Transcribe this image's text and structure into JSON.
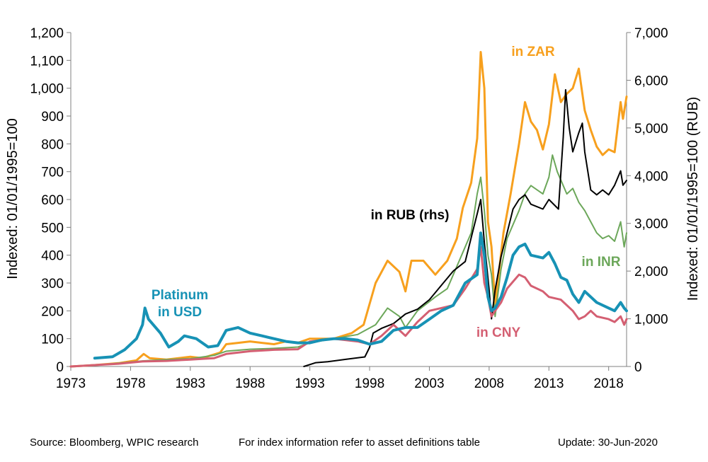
{
  "chart_data": {
    "type": "line",
    "left_axis": {
      "label": "Indexed: 01/01/1995=100",
      "range": [
        0,
        1200
      ],
      "ticks": [
        "0",
        "100",
        "200",
        "300",
        "400",
        "500",
        "600",
        "700",
        "800",
        "900",
        "1,000",
        "1,100",
        "1,200"
      ]
    },
    "right_axis": {
      "label": "Indexed: 01/01/1995=100  (RUB)",
      "range": [
        0,
        7000
      ],
      "ticks": [
        "0",
        "1,000",
        "2,000",
        "3,000",
        "4,000",
        "5,000",
        "6,000",
        "7,000"
      ]
    },
    "x_axis": {
      "range": [
        1973,
        2019.5
      ],
      "ticks": [
        "1973",
        "1978",
        "1983",
        "1988",
        "1993",
        "1998",
        "2003",
        "2008",
        "2013",
        "2018"
      ]
    },
    "grid": false,
    "series": [
      {
        "name": "in ZAR",
        "axis": "left",
        "color": "#F7A01E",
        "width": 3,
        "points": [
          [
            1973,
            0
          ],
          [
            1975,
            5
          ],
          [
            1977,
            12
          ],
          [
            1978.5,
            22
          ],
          [
            1979.1,
            45
          ],
          [
            1979.6,
            30
          ],
          [
            1981,
            25
          ],
          [
            1983,
            35
          ],
          [
            1984,
            30
          ],
          [
            1985.5,
            50
          ],
          [
            1986,
            80
          ],
          [
            1987,
            85
          ],
          [
            1988,
            90
          ],
          [
            1989,
            85
          ],
          [
            1990,
            80
          ],
          [
            1991,
            90
          ],
          [
            1992,
            85
          ],
          [
            1993,
            100
          ],
          [
            1995,
            100
          ],
          [
            1996.5,
            120
          ],
          [
            1997.5,
            150
          ],
          [
            1998.5,
            300
          ],
          [
            1999.5,
            380
          ],
          [
            2000.5,
            340
          ],
          [
            2001,
            270
          ],
          [
            2001.5,
            380
          ],
          [
            2002.5,
            380
          ],
          [
            2003.5,
            330
          ],
          [
            2004.5,
            380
          ],
          [
            2005.3,
            460
          ],
          [
            2005.8,
            570
          ],
          [
            2006.5,
            660
          ],
          [
            2007,
            820
          ],
          [
            2007.3,
            1130
          ],
          [
            2007.6,
            1000
          ],
          [
            2007.9,
            520
          ],
          [
            2008.2,
            430
          ],
          [
            2008.5,
            220
          ],
          [
            2009.2,
            480
          ],
          [
            2009.8,
            620
          ],
          [
            2010.5,
            800
          ],
          [
            2011,
            950
          ],
          [
            2011.5,
            880
          ],
          [
            2012,
            850
          ],
          [
            2012.5,
            780
          ],
          [
            2013,
            870
          ],
          [
            2013.5,
            1050
          ],
          [
            2014,
            950
          ],
          [
            2014.5,
            980
          ],
          [
            2015,
            1000
          ],
          [
            2015.5,
            1070
          ],
          [
            2016,
            920
          ],
          [
            2016.5,
            850
          ],
          [
            2017,
            790
          ],
          [
            2017.5,
            760
          ],
          [
            2018,
            780
          ],
          [
            2018.5,
            770
          ],
          [
            2019,
            950
          ],
          [
            2019.2,
            890
          ],
          [
            2019.5,
            970
          ]
        ]
      },
      {
        "name": "in INR",
        "axis": "left",
        "color": "#6CA75A",
        "width": 2,
        "points": [
          [
            1973,
            0
          ],
          [
            1975,
            5
          ],
          [
            1977,
            12
          ],
          [
            1979,
            20
          ],
          [
            1981,
            25
          ],
          [
            1983,
            28
          ],
          [
            1985,
            40
          ],
          [
            1986,
            55
          ],
          [
            1988,
            62
          ],
          [
            1990,
            65
          ],
          [
            1992,
            70
          ],
          [
            1993,
            85
          ],
          [
            1995,
            100
          ],
          [
            1997,
            115
          ],
          [
            1998.5,
            150
          ],
          [
            1999.5,
            210
          ],
          [
            2000.5,
            180
          ],
          [
            2001,
            140
          ],
          [
            2002,
            200
          ],
          [
            2003.5,
            250
          ],
          [
            2004.5,
            280
          ],
          [
            2005.5,
            380
          ],
          [
            2006.5,
            480
          ],
          [
            2007,
            620
          ],
          [
            2007.3,
            680
          ],
          [
            2007.6,
            560
          ],
          [
            2007.9,
            400
          ],
          [
            2008.2,
            330
          ],
          [
            2008.5,
            180
          ],
          [
            2009,
            350
          ],
          [
            2009.5,
            460
          ],
          [
            2010.5,
            560
          ],
          [
            2011,
            620
          ],
          [
            2011.5,
            650
          ],
          [
            2012.5,
            620
          ],
          [
            2013,
            680
          ],
          [
            2013.3,
            760
          ],
          [
            2013.7,
            700
          ],
          [
            2014.5,
            620
          ],
          [
            2015,
            640
          ],
          [
            2015.5,
            590
          ],
          [
            2016,
            560
          ],
          [
            2016.5,
            520
          ],
          [
            2017,
            480
          ],
          [
            2017.5,
            460
          ],
          [
            2018,
            470
          ],
          [
            2018.5,
            450
          ],
          [
            2019,
            520
          ],
          [
            2019.3,
            430
          ],
          [
            2019.5,
            480
          ]
        ]
      },
      {
        "name": "in RUB (rhs)",
        "axis": "right",
        "color": "#000000",
        "width": 2,
        "points": [
          [
            1992.5,
            0
          ],
          [
            1993.5,
            80
          ],
          [
            1994.5,
            100
          ],
          [
            1996,
            150
          ],
          [
            1997.6,
            200
          ],
          [
            1998,
            400
          ],
          [
            1998.3,
            700
          ],
          [
            1999,
            800
          ],
          [
            2000,
            900
          ],
          [
            2001,
            1100
          ],
          [
            2002,
            1200
          ],
          [
            2003,
            1400
          ],
          [
            2004,
            1700
          ],
          [
            2005,
            2000
          ],
          [
            2006,
            2200
          ],
          [
            2006.6,
            2800
          ],
          [
            2007,
            3200
          ],
          [
            2007.3,
            3500
          ],
          [
            2007.6,
            2600
          ],
          [
            2008,
            1600
          ],
          [
            2008.2,
            1000
          ],
          [
            2008.5,
            1600
          ],
          [
            2009,
            2300
          ],
          [
            2009.5,
            2800
          ],
          [
            2010,
            3300
          ],
          [
            2010.5,
            3500
          ],
          [
            2011,
            3600
          ],
          [
            2011.5,
            3400
          ],
          [
            2012.5,
            3300
          ],
          [
            2013,
            3500
          ],
          [
            2013.8,
            3300
          ],
          [
            2014.2,
            4800
          ],
          [
            2014.4,
            5800
          ],
          [
            2014.7,
            5000
          ],
          [
            2015,
            4500
          ],
          [
            2015.5,
            4900
          ],
          [
            2015.8,
            5100
          ],
          [
            2016,
            4500
          ],
          [
            2016.5,
            3700
          ],
          [
            2017,
            3600
          ],
          [
            2017.5,
            3700
          ],
          [
            2018,
            3600
          ],
          [
            2018.5,
            3800
          ],
          [
            2019,
            4100
          ],
          [
            2019.2,
            3800
          ],
          [
            2019.5,
            3900
          ]
        ]
      },
      {
        "name": "in CNY",
        "axis": "left",
        "color": "#D45F72",
        "width": 3,
        "points": [
          [
            1973,
            0
          ],
          [
            1975,
            5
          ],
          [
            1977,
            10
          ],
          [
            1979,
            18
          ],
          [
            1981,
            20
          ],
          [
            1983,
            25
          ],
          [
            1985,
            30
          ],
          [
            1986,
            45
          ],
          [
            1988,
            55
          ],
          [
            1990,
            60
          ],
          [
            1992,
            62
          ],
          [
            1993,
            90
          ],
          [
            1995,
            100
          ],
          [
            1997,
            90
          ],
          [
            1998,
            80
          ],
          [
            1999,
            110
          ],
          [
            2000,
            150
          ],
          [
            2001,
            110
          ],
          [
            2002,
            160
          ],
          [
            2003,
            200
          ],
          [
            2004,
            210
          ],
          [
            2005,
            220
          ],
          [
            2006,
            280
          ],
          [
            2007,
            350
          ],
          [
            2007.3,
            430
          ],
          [
            2007.6,
            300
          ],
          [
            2007.9,
            250
          ],
          [
            2008.2,
            180
          ],
          [
            2008.5,
            200
          ],
          [
            2009,
            230
          ],
          [
            2009.5,
            280
          ],
          [
            2010.5,
            330
          ],
          [
            2011,
            320
          ],
          [
            2011.5,
            290
          ],
          [
            2012.5,
            270
          ],
          [
            2013,
            250
          ],
          [
            2014,
            240
          ],
          [
            2015,
            200
          ],
          [
            2015.5,
            170
          ],
          [
            2016,
            180
          ],
          [
            2016.5,
            200
          ],
          [
            2017,
            180
          ],
          [
            2018,
            170
          ],
          [
            2018.5,
            160
          ],
          [
            2019,
            180
          ],
          [
            2019.3,
            150
          ],
          [
            2019.5,
            170
          ]
        ]
      },
      {
        "name": "Platinum in USD",
        "axis": "left",
        "color": "#1792B5",
        "width": 4,
        "points": [
          [
            1975,
            30
          ],
          [
            1976.5,
            35
          ],
          [
            1977.5,
            60
          ],
          [
            1978.5,
            100
          ],
          [
            1979,
            150
          ],
          [
            1979.2,
            210
          ],
          [
            1979.5,
            170
          ],
          [
            1980.5,
            120
          ],
          [
            1981.2,
            70
          ],
          [
            1982,
            90
          ],
          [
            1982.5,
            110
          ],
          [
            1983.5,
            100
          ],
          [
            1984.5,
            70
          ],
          [
            1985.3,
            75
          ],
          [
            1986,
            130
          ],
          [
            1987,
            140
          ],
          [
            1988,
            120
          ],
          [
            1989,
            110
          ],
          [
            1990,
            100
          ],
          [
            1991,
            90
          ],
          [
            1992,
            85
          ],
          [
            1993,
            85
          ],
          [
            1994,
            95
          ],
          [
            1995,
            100
          ],
          [
            1996,
            100
          ],
          [
            1997,
            95
          ],
          [
            1998,
            80
          ],
          [
            1999,
            90
          ],
          [
            2000,
            130
          ],
          [
            2001,
            140
          ],
          [
            2002,
            140
          ],
          [
            2003,
            170
          ],
          [
            2004,
            200
          ],
          [
            2005,
            220
          ],
          [
            2006,
            300
          ],
          [
            2007,
            330
          ],
          [
            2007.3,
            480
          ],
          [
            2007.6,
            400
          ],
          [
            2007.9,
            250
          ],
          [
            2008.2,
            200
          ],
          [
            2008.5,
            210
          ],
          [
            2009,
            250
          ],
          [
            2009.5,
            320
          ],
          [
            2010,
            400
          ],
          [
            2010.5,
            430
          ],
          [
            2011,
            440
          ],
          [
            2011.5,
            400
          ],
          [
            2012.5,
            390
          ],
          [
            2013,
            410
          ],
          [
            2013.5,
            370
          ],
          [
            2014,
            320
          ],
          [
            2014.5,
            310
          ],
          [
            2015,
            260
          ],
          [
            2015.5,
            230
          ],
          [
            2016,
            270
          ],
          [
            2016.5,
            250
          ],
          [
            2017,
            230
          ],
          [
            2018,
            210
          ],
          [
            2018.5,
            200
          ],
          [
            2019,
            230
          ],
          [
            2019.3,
            210
          ],
          [
            2019.5,
            200
          ]
        ]
      }
    ],
    "annotations": [
      {
        "text_lines": [
          "Platinum",
          "in USD"
        ],
        "color": "#1792B5"
      },
      {
        "text_lines": [
          "in ZAR"
        ],
        "color": "#F7A01E"
      },
      {
        "text_lines": [
          "in RUB (rhs)"
        ],
        "color": "#000000"
      },
      {
        "text_lines": [
          "in INR"
        ],
        "color": "#6CA75A"
      },
      {
        "text_lines": [
          "in CNY"
        ],
        "color": "#D45F72"
      }
    ]
  },
  "footer": {
    "source": "Source: Bloomberg, WPIC research",
    "note": "For index information refer to asset definitions table",
    "update": "Update: 30-Jun-2020"
  }
}
